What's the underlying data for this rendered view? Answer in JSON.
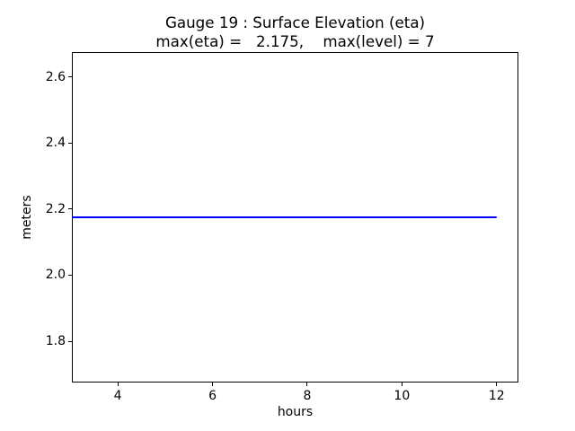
{
  "figure": {
    "background": "#ffffff",
    "spine_color": "#000000",
    "text_color": "#000000"
  },
  "chart_data": {
    "type": "line",
    "title": "Gauge 19 : Surface Elevation (eta)",
    "subtitle": "max(eta) =   2.175,    max(level) = 7",
    "xlabel": "hours",
    "ylabel": "meters",
    "xlim": [
      3.03,
      12.46
    ],
    "ylim": [
      1.675,
      2.675
    ],
    "xticks": [
      4,
      6,
      8,
      10,
      12
    ],
    "xtick_labels": [
      "4",
      "6",
      "8",
      "10",
      "12"
    ],
    "yticks": [
      1.8,
      2.0,
      2.2,
      2.4,
      2.6
    ],
    "ytick_labels": [
      "1.8",
      "2.0",
      "2.2",
      "2.4",
      "2.6"
    ],
    "grid": false,
    "legend": null,
    "series": [
      {
        "name": "surface-elevation-eta",
        "color": "#0000ff",
        "linewidth": 2,
        "x": [
          3.03,
          12.0
        ],
        "y": [
          2.175,
          2.175
        ]
      }
    ],
    "stated_values": {
      "max_eta": "2.175",
      "max_level": "7"
    }
  }
}
